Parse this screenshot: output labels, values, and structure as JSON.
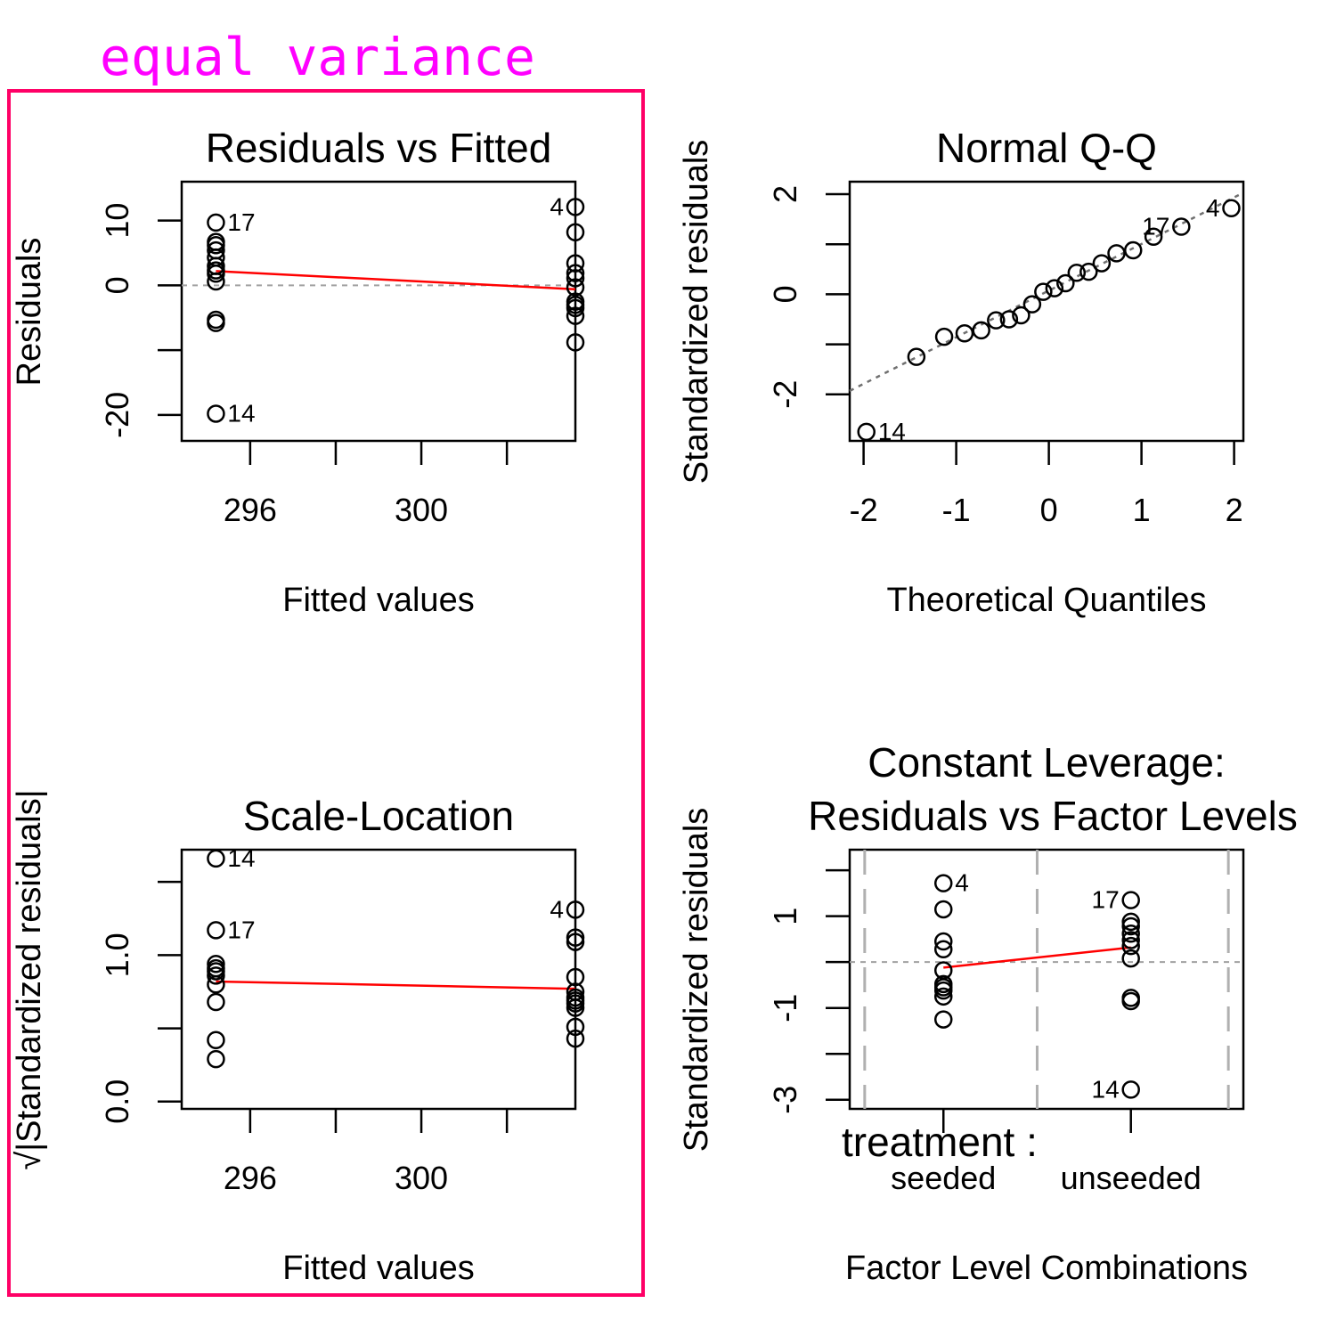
{
  "annotation": {
    "text": "equal variance",
    "text_color": "#ff00ff",
    "box_color": "#ff0066"
  },
  "chart_data": [
    {
      "type": "scatter",
      "title": "Residuals vs Fitted",
      "xlabel": "Fitted values",
      "ylabel": "Residuals",
      "xlim": [
        294.4,
        303.6
      ],
      "ylim": [
        -24,
        16
      ],
      "xticks": [
        296,
        298,
        300,
        302
      ],
      "xtick_labels": [
        "296",
        "",
        "300",
        ""
      ],
      "yticks": [
        -20,
        -10,
        0,
        10
      ],
      "ytick_labels": [
        "-20",
        "",
        "0",
        "10"
      ],
      "reference_line": {
        "y": 0,
        "style": "dashed",
        "color": "#a0a0a0"
      },
      "smoother": {
        "x": [
          295.2,
          303.6
        ],
        "y": [
          2.2,
          -0.6
        ],
        "color": "#ff0000"
      },
      "series": [
        {
          "x": [
            295.2,
            295.2,
            295.2,
            295.2,
            295.2,
            295.2,
            295.2,
            295.2,
            295.2,
            295.2,
            295.2,
            295.2
          ],
          "y": [
            9.7,
            6.2,
            5.4,
            4.3,
            3.0,
            1.8,
            0.6,
            -5.3,
            -5.8,
            -19.8,
            6.7,
            2.3
          ]
        },
        {
          "x": [
            303.6,
            303.6,
            303.6,
            303.6,
            303.6,
            303.6,
            303.6,
            303.6,
            303.6,
            303.6,
            303.6
          ],
          "y": [
            12.1,
            8.2,
            3.4,
            1.9,
            -0.3,
            -2.5,
            -3.0,
            -3.5,
            -4.7,
            -8.8,
            1.1
          ]
        }
      ],
      "point_labels": [
        {
          "text": "17",
          "x": 295.2,
          "y": 9.7,
          "side": "right"
        },
        {
          "text": "14",
          "x": 295.2,
          "y": -19.8,
          "side": "right"
        },
        {
          "text": "4",
          "x": 303.6,
          "y": 12.1,
          "side": "left"
        }
      ]
    },
    {
      "type": "scatter",
      "title": "Normal Q-Q",
      "xlabel": "Theoretical Quantiles",
      "ylabel": "Standardized residuals",
      "xlim": [
        -2.15,
        2.1
      ],
      "ylim": [
        -2.93,
        2.25
      ],
      "xticks": [
        -2,
        -1,
        0,
        1,
        2
      ],
      "xtick_labels": [
        "-2",
        "-1",
        "0",
        "1",
        "2"
      ],
      "yticks": [
        -2,
        -1,
        0,
        1,
        2
      ],
      "ytick_labels": [
        "-2",
        "",
        "0",
        "",
        "2"
      ],
      "reference_line": {
        "x": [
          -2.15,
          2.1
        ],
        "y": [
          -1.93,
          2.03
        ],
        "style": "dotted",
        "color": "#707070"
      },
      "series": [
        {
          "x": [
            -1.97,
            -1.43,
            -1.13,
            -0.91,
            -0.73,
            -0.57,
            -0.43,
            -0.3,
            -0.18,
            -0.06,
            0.06,
            0.18,
            0.3,
            0.43,
            0.57,
            0.73,
            0.91,
            1.13,
            1.43,
            1.97
          ],
          "y": [
            -2.75,
            -1.25,
            -0.85,
            -0.78,
            -0.72,
            -0.52,
            -0.5,
            -0.42,
            -0.2,
            0.05,
            0.12,
            0.22,
            0.43,
            0.45,
            0.62,
            0.82,
            0.88,
            1.15,
            1.35,
            1.72
          ]
        }
      ],
      "point_labels": [
        {
          "text": "14",
          "x": -1.97,
          "y": -2.75,
          "side": "right"
        },
        {
          "text": "17",
          "x": 1.43,
          "y": 1.35,
          "side": "left"
        },
        {
          "text": "4",
          "x": 1.97,
          "y": 1.72,
          "side": "left"
        }
      ]
    },
    {
      "type": "scatter",
      "title": "Scale-Location",
      "xlabel": "Fitted values",
      "ylabel": "√|Standardized residuals|",
      "xlim": [
        294.4,
        303.6
      ],
      "ylim": [
        -0.05,
        1.72
      ],
      "xticks": [
        296,
        298,
        300,
        302
      ],
      "xtick_labels": [
        "296",
        "",
        "300",
        ""
      ],
      "yticks": [
        0.0,
        0.5,
        1.0,
        1.5
      ],
      "ytick_labels": [
        "0.0",
        "",
        "1.0",
        ""
      ],
      "smoother": {
        "x": [
          295.2,
          303.6
        ],
        "y": [
          0.82,
          0.77
        ],
        "color": "#ff0000"
      },
      "series": [
        {
          "x": [
            295.2,
            295.2,
            295.2,
            295.2,
            295.2,
            295.2,
            295.2,
            295.2,
            295.2,
            295.2
          ],
          "y": [
            1.66,
            1.17,
            0.94,
            0.91,
            0.89,
            0.86,
            0.8,
            0.68,
            0.42,
            0.29
          ]
        },
        {
          "x": [
            303.6,
            303.6,
            303.6,
            303.6,
            303.6,
            303.6,
            303.6,
            303.6,
            303.6,
            303.6,
            303.6
          ],
          "y": [
            1.31,
            1.12,
            1.09,
            0.85,
            0.75,
            0.71,
            0.67,
            0.64,
            0.51,
            0.43,
            0.69
          ]
        }
      ],
      "point_labels": [
        {
          "text": "14",
          "x": 295.2,
          "y": 1.66,
          "side": "right"
        },
        {
          "text": "17",
          "x": 295.2,
          "y": 1.17,
          "side": "right"
        },
        {
          "text": "4",
          "x": 303.6,
          "y": 1.31,
          "side": "left"
        }
      ]
    },
    {
      "type": "scatter",
      "title": "Constant Leverage:",
      "subtitle": "Residuals vs Factor Levels",
      "xlabel": "Factor Level Combinations",
      "ylabel": "Standardized residuals",
      "factor_name": "treatment :",
      "xlim": [
        0.5,
        2.6
      ],
      "ylim": [
        -3.2,
        2.45
      ],
      "xticks": [
        1,
        2
      ],
      "xtick_labels": [
        "seeded",
        "unseeded"
      ],
      "yticks": [
        -3,
        -2,
        -1,
        0,
        1,
        2
      ],
      "ytick_labels": [
        "-3",
        "",
        "-1",
        "",
        "1",
        ""
      ],
      "reference_line": {
        "y": 0,
        "style": "dotted",
        "color": "#a0a0a0"
      },
      "level_separators": [
        0.58,
        1.5,
        2.52
      ],
      "smoother": {
        "x": [
          1,
          2
        ],
        "y": [
          -0.12,
          0.32
        ],
        "color": "#ff0000"
      },
      "series": [
        {
          "x": [
            1,
            1,
            1,
            1,
            1,
            1,
            1,
            1,
            1,
            1
          ],
          "y": [
            1.72,
            1.15,
            0.45,
            0.28,
            -0.18,
            -0.48,
            -0.55,
            -0.62,
            -0.75,
            -1.25
          ]
        },
        {
          "x": [
            2,
            2,
            2,
            2,
            2,
            2,
            2,
            2,
            2,
            2
          ],
          "y": [
            1.35,
            0.88,
            0.78,
            0.62,
            0.48,
            0.35,
            0.08,
            -0.78,
            -0.85,
            -2.78
          ]
        }
      ],
      "point_labels": [
        {
          "text": "4",
          "x": 1,
          "y": 1.72,
          "side": "right"
        },
        {
          "text": "17",
          "x": 2,
          "y": 1.35,
          "side": "left"
        },
        {
          "text": "14",
          "x": 2,
          "y": -2.78,
          "side": "left"
        }
      ]
    }
  ]
}
